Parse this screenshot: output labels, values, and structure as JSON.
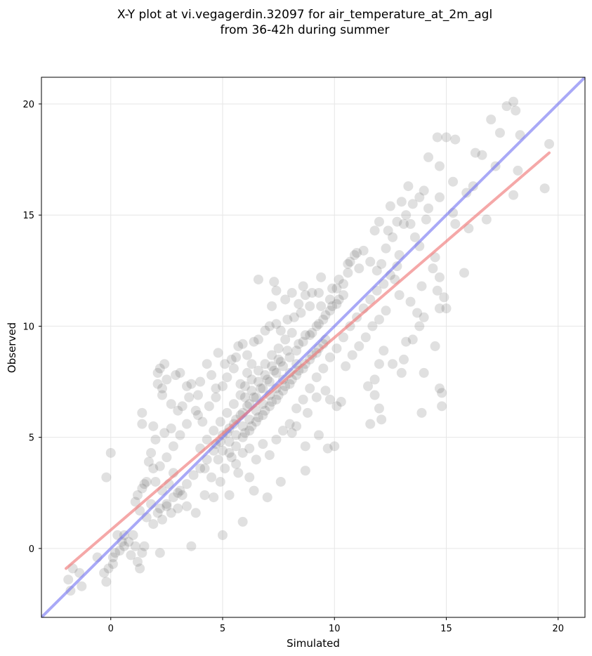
{
  "chart_data": {
    "type": "scatter",
    "title_lines": [
      "X-Y plot at vi.vegagerdin.32097 for air_temperature_at_2m_agl",
      "from 36-42h during summer"
    ],
    "xlabel": "Simulated",
    "ylabel": "Observed",
    "xlim": [
      -3.1,
      21.2
    ],
    "ylim": [
      -3.1,
      21.2
    ],
    "xticks": [
      0,
      5,
      10,
      15,
      20
    ],
    "yticks": [
      0,
      5,
      10,
      15,
      20
    ],
    "grid": true,
    "point_color": "#555555",
    "identity_line": {
      "from": [
        -3.1,
        -3.1
      ],
      "to": [
        21.2,
        21.2
      ],
      "color": "#6f6ff2"
    },
    "fit_line": {
      "from": [
        -2.0,
        -0.9
      ],
      "to": [
        19.6,
        17.8
      ],
      "color": "#f07a7a"
    },
    "points": [
      [
        -1.8,
        -1.9
      ],
      [
        -1.9,
        -1.4
      ],
      [
        -1.7,
        -0.9
      ],
      [
        -1.4,
        -1.1
      ],
      [
        -1.3,
        -1.7
      ],
      [
        -0.6,
        -0.4
      ],
      [
        -0.3,
        -1.1
      ],
      [
        -0.2,
        -1.5
      ],
      [
        -0.1,
        -0.9
      ],
      [
        0.1,
        -0.7
      ],
      [
        0.2,
        -0.2
      ],
      [
        0.1,
        -0.4
      ],
      [
        0.4,
        -0.1
      ],
      [
        0.5,
        0.3
      ],
      [
        0.6,
        0.1
      ],
      [
        0.8,
        0.3
      ],
      [
        0.9,
        -0.3
      ],
      [
        1.1,
        0.1
      ],
      [
        1.2,
        -0.6
      ],
      [
        1.4,
        -0.2
      ],
      [
        1.5,
        0.1
      ],
      [
        1.3,
        -0.9
      ],
      [
        1.0,
        0.6
      ],
      [
        0.6,
        0.6
      ],
      [
        0.3,
        0.6
      ],
      [
        -0.2,
        3.2
      ],
      [
        0.0,
        4.3
      ],
      [
        1.4,
        6.1
      ],
      [
        1.4,
        5.6
      ],
      [
        1.2,
        2.4
      ],
      [
        1.1,
        2.1
      ],
      [
        1.3,
        1.7
      ],
      [
        1.5,
        2.9
      ],
      [
        1.7,
        3.9
      ],
      [
        1.9,
        3.6
      ],
      [
        1.9,
        5.5
      ],
      [
        2.1,
        7.9
      ],
      [
        2.2,
        8.1
      ],
      [
        2.1,
        7.4
      ],
      [
        2.3,
        7.2
      ],
      [
        2.4,
        8.3
      ],
      [
        2.5,
        7.6
      ],
      [
        2.3,
        6.9
      ],
      [
        2.7,
        6.5
      ],
      [
        2.9,
        7.8
      ],
      [
        3.1,
        7.9
      ],
      [
        3.4,
        7.3
      ],
      [
        3.6,
        7.4
      ],
      [
        3.8,
        6.2
      ],
      [
        3.9,
        6.9
      ],
      [
        4.0,
        7.5
      ],
      [
        4.3,
        8.3
      ],
      [
        4.5,
        7.8
      ],
      [
        4.7,
        7.2
      ],
      [
        4.8,
        8.8
      ],
      [
        5.1,
        8.3
      ],
      [
        5.4,
        8.5
      ],
      [
        5.6,
        8.6
      ],
      [
        5.7,
        9.1
      ],
      [
        5.9,
        9.2
      ],
      [
        6.1,
        8.7
      ],
      [
        6.4,
        9.3
      ],
      [
        6.6,
        9.4
      ],
      [
        6.9,
        9.8
      ],
      [
        7.1,
        10.0
      ],
      [
        7.4,
        10.1
      ],
      [
        7.6,
        9.8
      ],
      [
        7.9,
        10.3
      ],
      [
        8.2,
        10.4
      ],
      [
        8.5,
        10.6
      ],
      [
        8.7,
        11.4
      ],
      [
        8.4,
        11.0
      ],
      [
        7.8,
        11.2
      ],
      [
        7.4,
        11.6
      ],
      [
        7.2,
        10.9
      ],
      [
        6.6,
        12.1
      ],
      [
        7.3,
        12.0
      ],
      [
        8.9,
        10.9
      ],
      [
        9.3,
        11.5
      ],
      [
        9.4,
        10.9
      ],
      [
        9.8,
        11.2
      ],
      [
        10.1,
        11.7
      ],
      [
        10.4,
        11.9
      ],
      [
        10.6,
        12.4
      ],
      [
        10.7,
        12.9
      ],
      [
        11.1,
        12.6
      ],
      [
        11.0,
        13.3
      ],
      [
        11.3,
        13.4
      ],
      [
        11.6,
        12.9
      ],
      [
        11.9,
        12.5
      ],
      [
        12.1,
        12.8
      ],
      [
        12.3,
        13.5
      ],
      [
        12.4,
        14.3
      ],
      [
        12.6,
        14.0
      ],
      [
        12.8,
        14.7
      ],
      [
        13.1,
        14.6
      ],
      [
        13.2,
        15.0
      ],
      [
        13.4,
        14.6
      ],
      [
        13.5,
        15.5
      ],
      [
        13.8,
        15.8
      ],
      [
        14.0,
        16.1
      ],
      [
        14.2,
        15.3
      ],
      [
        14.1,
        14.8
      ],
      [
        13.6,
        14.0
      ],
      [
        13.8,
        13.6
      ],
      [
        12.9,
        13.2
      ],
      [
        12.7,
        12.1
      ],
      [
        12.9,
        11.4
      ],
      [
        13.4,
        11.1
      ],
      [
        13.7,
        10.6
      ],
      [
        14.4,
        12.6
      ],
      [
        14.5,
        13.1
      ],
      [
        14.7,
        12.2
      ],
      [
        14.6,
        11.6
      ],
      [
        14.9,
        11.3
      ],
      [
        14.7,
        10.8
      ],
      [
        15.0,
        10.8
      ],
      [
        13.9,
        11.8
      ],
      [
        14.0,
        10.4
      ],
      [
        13.8,
        10.0
      ],
      [
        13.5,
        9.4
      ],
      [
        13.2,
        9.3
      ],
      [
        13.1,
        8.5
      ],
      [
        13.0,
        7.9
      ],
      [
        12.6,
        8.3
      ],
      [
        12.2,
        8.9
      ],
      [
        12.0,
        8.3
      ],
      [
        11.8,
        7.6
      ],
      [
        11.5,
        7.3
      ],
      [
        11.8,
        6.9
      ],
      [
        12.0,
        6.3
      ],
      [
        12.1,
        5.8
      ],
      [
        11.6,
        5.6
      ],
      [
        10.3,
        6.6
      ],
      [
        10.1,
        6.4
      ],
      [
        9.8,
        6.7
      ],
      [
        9.6,
        7.1
      ],
      [
        9.2,
        6.8
      ],
      [
        8.8,
        6.1
      ],
      [
        8.3,
        5.5
      ],
      [
        8.1,
        5.2
      ],
      [
        8.7,
        4.6
      ],
      [
        9.3,
        5.1
      ],
      [
        9.7,
        4.5
      ],
      [
        10.0,
        4.6
      ],
      [
        8.7,
        3.5
      ],
      [
        7.6,
        3.0
      ],
      [
        7.0,
        2.3
      ],
      [
        6.4,
        2.6
      ],
      [
        6.2,
        3.2
      ],
      [
        5.7,
        3.4
      ],
      [
        5.9,
        1.2
      ],
      [
        5.0,
        0.6
      ],
      [
        5.3,
        2.4
      ],
      [
        4.9,
        3.0
      ],
      [
        4.6,
        2.3
      ],
      [
        4.2,
        2.4
      ],
      [
        3.8,
        1.6
      ],
      [
        3.4,
        1.9
      ],
      [
        3.6,
        0.1
      ],
      [
        3.0,
        2.5
      ],
      [
        2.8,
        3.4
      ],
      [
        2.6,
        2.9
      ],
      [
        2.3,
        2.6
      ],
      [
        2.0,
        3.0
      ],
      [
        1.8,
        2.0
      ],
      [
        1.6,
        1.4
      ],
      [
        1.9,
        1.1
      ],
      [
        2.1,
        1.6
      ],
      [
        2.3,
        1.3
      ],
      [
        2.5,
        1.9
      ],
      [
        2.7,
        1.6
      ],
      [
        3.0,
        1.8
      ],
      [
        3.2,
        2.4
      ],
      [
        2.2,
        -0.2
      ],
      [
        13.9,
        6.1
      ],
      [
        14.0,
        7.9
      ],
      [
        14.5,
        9.1
      ],
      [
        14.8,
        7.0
      ],
      [
        14.7,
        7.2
      ],
      [
        14.8,
        6.4
      ],
      [
        15.0,
        18.5
      ],
      [
        15.4,
        18.4
      ],
      [
        14.6,
        18.5
      ],
      [
        14.7,
        17.2
      ],
      [
        15.3,
        16.5
      ],
      [
        15.9,
        16.0
      ],
      [
        16.2,
        16.3
      ],
      [
        16.3,
        17.8
      ],
      [
        16.6,
        17.7
      ],
      [
        17.0,
        19.3
      ],
      [
        17.4,
        18.7
      ],
      [
        17.7,
        19.9
      ],
      [
        18.0,
        20.1
      ],
      [
        18.1,
        19.7
      ],
      [
        18.3,
        18.6
      ],
      [
        17.2,
        17.2
      ],
      [
        18.2,
        17.0
      ],
      [
        18.0,
        15.9
      ],
      [
        16.8,
        14.8
      ],
      [
        16.0,
        14.4
      ],
      [
        15.8,
        12.4
      ],
      [
        15.4,
        14.6
      ],
      [
        14.2,
        17.6
      ],
      [
        14.7,
        15.8
      ],
      [
        15.3,
        15.1
      ],
      [
        19.4,
        16.2
      ],
      [
        19.6,
        18.2
      ],
      [
        13.3,
        16.3
      ],
      [
        13.0,
        15.6
      ],
      [
        12.5,
        15.4
      ],
      [
        12.0,
        14.7
      ],
      [
        11.8,
        14.3
      ],
      [
        10.9,
        13.2
      ],
      [
        10.6,
        12.8
      ],
      [
        10.2,
        12.1
      ],
      [
        9.9,
        11.7
      ],
      [
        9.4,
        12.2
      ],
      [
        9.0,
        11.5
      ],
      [
        8.6,
        11.8
      ],
      [
        8.1,
        11.5
      ],
      [
        3.2,
        6.4
      ],
      [
        3.4,
        5.6
      ],
      [
        3.1,
        5.1
      ],
      [
        2.8,
        4.6
      ],
      [
        2.5,
        4.1
      ],
      [
        2.2,
        3.7
      ],
      [
        1.8,
        4.3
      ],
      [
        1.6,
        3.0
      ],
      [
        1.4,
        2.7
      ],
      [
        2.0,
        4.9
      ],
      [
        2.4,
        5.2
      ],
      [
        2.7,
        5.4
      ],
      [
        3.0,
        6.2
      ],
      [
        3.5,
        6.8
      ],
      [
        3.9,
        6.0
      ],
      [
        4.1,
        5.7
      ],
      [
        4.4,
        6.4
      ],
      [
        4.7,
        6.8
      ],
      [
        5.0,
        7.3
      ],
      [
        5.2,
        7.7
      ],
      [
        5.5,
        8.1
      ],
      [
        5.8,
        7.4
      ],
      [
        6.1,
        7.9
      ],
      [
        6.3,
        8.3
      ],
      [
        4.2,
        3.6
      ],
      [
        4.5,
        3.2
      ],
      [
        4.8,
        4.0
      ],
      [
        5.1,
        3.6
      ],
      [
        5.4,
        4.1
      ],
      [
        5.6,
        3.8
      ],
      [
        5.9,
        4.3
      ],
      [
        6.2,
        4.5
      ],
      [
        6.5,
        4.0
      ],
      [
        6.8,
        4.7
      ],
      [
        7.1,
        4.2
      ],
      [
        7.4,
        4.9
      ],
      [
        7.7,
        5.3
      ],
      [
        8.0,
        5.6
      ],
      [
        8.3,
        6.3
      ],
      [
        8.6,
        6.7
      ],
      [
        8.9,
        7.2
      ],
      [
        9.2,
        7.7
      ],
      [
        9.5,
        8.1
      ],
      [
        9.8,
        8.6
      ],
      [
        10.1,
        9.0
      ],
      [
        10.4,
        9.5
      ],
      [
        10.7,
        10.0
      ],
      [
        11.0,
        10.4
      ],
      [
        11.3,
        10.8
      ],
      [
        11.6,
        11.2
      ],
      [
        11.9,
        11.6
      ],
      [
        12.2,
        11.9
      ],
      [
        12.5,
        12.3
      ],
      [
        12.8,
        12.7
      ],
      [
        10.5,
        8.2
      ],
      [
        10.8,
        8.7
      ],
      [
        11.1,
        9.1
      ],
      [
        11.4,
        9.5
      ],
      [
        11.7,
        10.0
      ],
      [
        12.0,
        10.3
      ],
      [
        12.3,
        10.7
      ],
      [
        9.0,
        9.7
      ],
      [
        9.3,
        10.1
      ],
      [
        9.6,
        10.5
      ],
      [
        9.9,
        10.9
      ],
      [
        10.2,
        11.2
      ],
      [
        8.4,
        9.2
      ],
      [
        8.7,
        9.6
      ],
      [
        7.9,
        8.9
      ],
      [
        7.6,
        8.4
      ],
      [
        7.3,
        8.0
      ],
      [
        7.0,
        7.6
      ],
      [
        6.7,
        7.2
      ],
      [
        6.4,
        6.8
      ],
      [
        6.1,
        6.4
      ],
      [
        5.8,
        6.0
      ],
      [
        5.5,
        5.6
      ],
      [
        5.2,
        5.2
      ],
      [
        4.9,
        4.8
      ],
      [
        4.6,
        4.4
      ],
      [
        4.3,
        4.0
      ],
      [
        4.0,
        3.6
      ],
      [
        3.7,
        3.3
      ],
      [
        3.4,
        2.9
      ],
      [
        3.1,
        2.6
      ],
      [
        2.8,
        2.3
      ],
      [
        2.5,
        2.0
      ],
      [
        2.2,
        1.8
      ],
      [
        6.0,
        5.2
      ],
      [
        6.3,
        5.5
      ],
      [
        6.6,
        5.9
      ],
      [
        6.9,
        6.2
      ],
      [
        7.2,
        6.6
      ],
      [
        7.5,
        6.9
      ],
      [
        7.8,
        7.3
      ],
      [
        8.1,
        7.6
      ],
      [
        8.4,
        8.0
      ],
      [
        8.7,
        8.3
      ],
      [
        9.0,
        8.7
      ],
      [
        9.3,
        9.0
      ],
      [
        9.6,
        9.4
      ],
      [
        6.0,
        6.8
      ],
      [
        6.3,
        7.1
      ],
      [
        6.6,
        7.5
      ],
      [
        6.9,
        7.8
      ],
      [
        7.2,
        8.2
      ],
      [
        7.5,
        8.5
      ],
      [
        5.5,
        6.5
      ],
      [
        5.8,
        6.9
      ],
      [
        5.2,
        6.1
      ],
      [
        4.9,
        5.7
      ],
      [
        4.6,
        5.3
      ],
      [
        4.3,
        4.9
      ],
      [
        4.0,
        4.5
      ],
      [
        5.3,
        4.3
      ],
      [
        5.6,
        4.6
      ],
      [
        5.9,
        5.0
      ],
      [
        6.2,
        5.3
      ],
      [
        6.5,
        5.7
      ],
      [
        6.8,
        6.0
      ],
      [
        7.1,
        6.4
      ],
      [
        7.4,
        6.7
      ],
      [
        7.7,
        7.1
      ],
      [
        8.0,
        7.4
      ],
      [
        8.3,
        7.8
      ],
      [
        8.6,
        8.1
      ],
      [
        8.9,
        8.5
      ],
      [
        9.2,
        8.8
      ],
      [
        9.5,
        9.2
      ],
      [
        5.0,
        4.4
      ],
      [
        5.3,
        4.8
      ],
      [
        5.6,
        5.1
      ],
      [
        5.9,
        5.5
      ],
      [
        6.2,
        5.8
      ],
      [
        6.5,
        6.2
      ],
      [
        6.8,
        6.5
      ],
      [
        7.1,
        6.9
      ],
      [
        7.4,
        7.2
      ],
      [
        7.7,
        7.6
      ],
      [
        8.0,
        7.9
      ],
      [
        8.3,
        8.3
      ],
      [
        6.0,
        7.3
      ],
      [
        6.3,
        7.6
      ],
      [
        6.6,
        8.0
      ],
      [
        6.9,
        8.3
      ],
      [
        7.2,
        8.7
      ],
      [
        7.5,
        9.0
      ],
      [
        7.8,
        9.4
      ],
      [
        8.1,
        9.7
      ],
      [
        4.7,
        4.7
      ],
      [
        5.0,
        5.1
      ],
      [
        5.3,
        5.4
      ],
      [
        5.6,
        5.8
      ],
      [
        5.9,
        6.1
      ],
      [
        6.2,
        6.5
      ],
      [
        6.5,
        6.8
      ],
      [
        6.8,
        7.2
      ],
      [
        7.1,
        7.5
      ],
      [
        7.4,
        7.9
      ],
      [
        7.7,
        8.2
      ],
      [
        8.0,
        8.6
      ],
      [
        8.3,
        8.9
      ],
      [
        8.6,
        9.3
      ],
      [
        8.9,
        9.6
      ],
      [
        9.2,
        10.0
      ],
      [
        9.5,
        10.3
      ],
      [
        9.8,
        10.7
      ],
      [
        10.1,
        11.0
      ],
      [
        10.4,
        11.4
      ]
    ]
  }
}
